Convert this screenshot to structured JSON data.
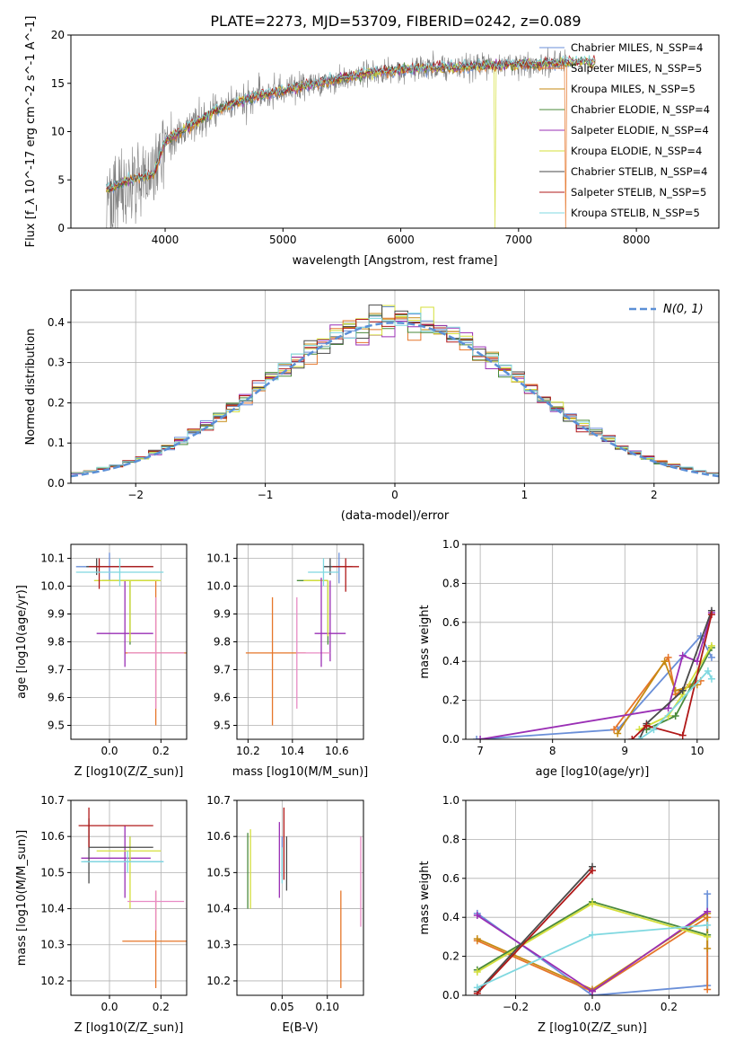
{
  "figure": {
    "title": "PLATE=2273, MJD=53709, FIBERID=0242, z=0.089"
  },
  "colors": {
    "data_spectrum": "#7f7f7f",
    "normal_curve": "#5b8fd6",
    "grid": "#b0b0b0"
  },
  "models": [
    {
      "name": "Chabrier MILES",
      "nssp": 4,
      "color": "#6a8fd8"
    },
    {
      "name": "Salpeter MILES",
      "nssp": 5,
      "color": "#e6762a"
    },
    {
      "name": "Kroupa MILES",
      "nssp": 5,
      "color": "#c68a12"
    },
    {
      "name": "Chabrier ELODIE",
      "nssp": 4,
      "color": "#4a8a3a"
    },
    {
      "name": "Salpeter ELODIE",
      "nssp": 4,
      "color": "#9a2fb5"
    },
    {
      "name": "Kroupa ELODIE",
      "nssp": 4,
      "color": "#d4df3a"
    },
    {
      "name": "Chabrier STELIB",
      "nssp": 4,
      "color": "#4a4a4a"
    },
    {
      "name": "Salpeter STELIB",
      "nssp": 5,
      "color": "#b01818"
    },
    {
      "name": "Kroupa STELIB",
      "nssp": 5,
      "color": "#7fd8e0"
    }
  ],
  "chart_data": [
    {
      "id": "spectrum",
      "type": "line",
      "title": "PLATE=2273, MJD=53709, FIBERID=0242, z=0.089",
      "xlabel": "wavelength [Angstrom, rest frame]",
      "ylabel": "Flux [f_λ 10^-17 erg cm^-2 s^-1 A^-1]",
      "xlim": [
        3200,
        8700
      ],
      "ylim": [
        0,
        20
      ],
      "xticks": [
        4000,
        5000,
        6000,
        7000,
        8000
      ],
      "yticks": [
        0,
        5,
        10,
        15,
        20
      ],
      "grid": false,
      "legend": "top-right",
      "continuum": {
        "x": [
          3500,
          3700,
          3900,
          4000,
          4200,
          4400,
          4600,
          4800,
          5000,
          5200,
          5500,
          5800,
          6000,
          6300,
          6600,
          6900,
          7200,
          7500,
          7800,
          8000,
          8400
        ],
        "y": [
          4,
          5,
          5.5,
          9,
          10.5,
          12,
          13,
          13.8,
          14.2,
          14.8,
          15.5,
          16.2,
          16.4,
          16.6,
          16.8,
          16.9,
          17,
          17.2,
          17.3,
          17.4,
          17.5
        ]
      },
      "data_range": [
        3500,
        7400
      ],
      "model_range": [
        3500,
        7650
      ],
      "dips": [
        {
          "model": "Kroupa ELODIE",
          "x": 6800
        },
        {
          "model": "Salpeter MILES",
          "x": 7400
        }
      ]
    },
    {
      "id": "residuals",
      "type": "bar",
      "style": "step-histogram",
      "xlabel": "(data-model)/error",
      "ylabel": "Normed distribution",
      "xlim": [
        -2.5,
        2.5
      ],
      "ylim": [
        0,
        0.48
      ],
      "xticks": [
        -2,
        -1,
        0,
        1,
        2
      ],
      "yticks": [
        0.0,
        0.1,
        0.2,
        0.3,
        0.4
      ],
      "grid": true,
      "legend": "top-right",
      "bin_width": 0.1,
      "normal_curve": {
        "label": "N(0, 1)",
        "mean": 0,
        "sigma": 1
      }
    },
    {
      "id": "age-vs-Z",
      "type": "scatter",
      "style": "errorbar",
      "xlabel": "Z [log10(Z/Z_sun)]",
      "ylabel": "age [log10(age/yr)]",
      "xlim": [
        -0.15,
        0.3
      ],
      "ylim": [
        9.45,
        10.15
      ],
      "xticks": [
        0.0,
        0.2
      ],
      "yticks": [
        9.5,
        9.6,
        9.7,
        9.8,
        9.9,
        10.0,
        10.1
      ],
      "grid": true,
      "points": [
        {
          "model": "Chabrier MILES",
          "x": 0.0,
          "y": 10.07,
          "xerr": [
            0.13,
            0.13
          ],
          "yerr": [
            0.05,
            0.05
          ]
        },
        {
          "model": "Salpeter MILES",
          "x": 0.18,
          "y": 9.76,
          "xerr": [
            0.12,
            0.12
          ],
          "yerr": [
            0.26,
            0.26
          ]
        },
        {
          "model": "Kroupa MILES",
          "x": 0.16,
          "y": 9.87,
          "xerr": [
            0.0,
            0.0
          ],
          "yerr": [
            0.0,
            0.0
          ]
        },
        {
          "model": "Chabrier ELODIE",
          "x": 0.08,
          "y": 10.02,
          "xerr": [
            0.11,
            0.11
          ],
          "yerr": [
            0.23,
            0.0
          ]
        },
        {
          "model": "Salpeter ELODIE",
          "x": 0.06,
          "y": 9.83,
          "xerr": [
            0.11,
            0.11
          ],
          "yerr": [
            0.12,
            0.19
          ]
        },
        {
          "model": "Kroupa ELODIE",
          "x": 0.08,
          "y": 10.02,
          "xerr": [
            0.14,
            0.12
          ],
          "yerr": [
            0.22,
            0.0
          ]
        },
        {
          "model": "Chabrier STELIB",
          "x": -0.05,
          "y": 10.07,
          "xerr": [
            0.04,
            0.22
          ],
          "yerr": [
            0.03,
            0.03
          ]
        },
        {
          "model": "Salpeter STELIB",
          "x": -0.04,
          "y": 10.07,
          "xerr": [
            0.04,
            0.21
          ],
          "yerr": [
            0.08,
            0.03
          ]
        },
        {
          "model": "Kroupa STELIB",
          "x": 0.04,
          "y": 10.05,
          "xerr": [
            0.17,
            0.17
          ],
          "yerr": [
            0.05,
            0.05
          ]
        },
        {
          "model": "Salpeter ELODIE-pink",
          "x": 0.18,
          "y": 9.76,
          "xerr": [
            0.11,
            0.11
          ],
          "yerr": [
            0.2,
            0.2
          ]
        }
      ]
    },
    {
      "id": "age-vs-mass",
      "type": "scatter",
      "style": "errorbar",
      "xlabel": "mass [log10(M/M_sun)]",
      "ylabel": "",
      "xlim": [
        10.15,
        10.72
      ],
      "ylim": [
        9.45,
        10.15
      ],
      "xticks": [
        10.2,
        10.4,
        10.6
      ],
      "yticks": [
        9.5,
        9.6,
        9.7,
        9.8,
        9.9,
        10.0,
        10.1
      ],
      "grid": true,
      "points": [
        {
          "model": "Chabrier MILES",
          "x": 10.61,
          "y": 10.07,
          "xerr": [
            0.07,
            0.0
          ],
          "yerr": [
            0.06,
            0.05
          ]
        },
        {
          "model": "Salpeter MILES",
          "x": 10.31,
          "y": 9.76,
          "xerr": [
            0.12,
            0.15
          ],
          "yerr": [
            0.26,
            0.2
          ]
        },
        {
          "model": "Chabrier ELODIE",
          "x": 10.56,
          "y": 10.02,
          "xerr": [
            0.14,
            0.0
          ],
          "yerr": [
            0.23,
            0.0
          ]
        },
        {
          "model": "Salpeter ELODIE",
          "x": 10.57,
          "y": 9.83,
          "xerr": [
            0.07,
            0.07
          ],
          "yerr": [
            0.1,
            0.19
          ]
        },
        {
          "model": "Kroupa ELODIE",
          "x": 10.56,
          "y": 10.02,
          "xerr": [
            0.11,
            0.0
          ],
          "yerr": [
            0.2,
            0.0
          ]
        },
        {
          "model": "Chabrier STELIB",
          "x": 10.57,
          "y": 10.07,
          "xerr": [
            0.03,
            0.1
          ],
          "yerr": [
            0.03,
            0.03
          ]
        },
        {
          "model": "Salpeter STELIB",
          "x": 10.64,
          "y": 10.07,
          "xerr": [
            0.06,
            0.06
          ],
          "yerr": [
            0.09,
            0.03
          ]
        },
        {
          "model": "Kroupa STELIB",
          "x": 10.54,
          "y": 10.05,
          "xerr": [
            0.07,
            0.07
          ],
          "yerr": [
            0.05,
            0.05
          ]
        },
        {
          "model": "Salpeter ELODIE-pink",
          "x": 10.42,
          "y": 9.76,
          "xerr": [
            0.0,
            0.15
          ],
          "yerr": [
            0.2,
            0.2
          ]
        },
        {
          "model": "Salpeter ELODIE-v",
          "x": 10.53,
          "y": 9.83,
          "xerr": [
            0.0,
            0.0
          ],
          "yerr": [
            0.12,
            0.2
          ]
        }
      ]
    },
    {
      "id": "mass-weight-vs-age",
      "type": "line",
      "xlabel": "age [log10(age/yr)]",
      "ylabel": "mass weight",
      "xlim": [
        6.8,
        10.3
      ],
      "ylim": [
        0.0,
        1.0
      ],
      "xticks": [
        7,
        8,
        9,
        10
      ],
      "yticks": [
        0.0,
        0.2,
        0.4,
        0.6,
        0.8,
        1.0
      ],
      "grid": true,
      "series": [
        {
          "model": "Chabrier MILES",
          "x": [
            6.95,
            8.9,
            10.05,
            10.2
          ],
          "y": [
            0.0,
            0.05,
            0.53,
            0.42
          ]
        },
        {
          "model": "Salpeter MILES",
          "x": [
            8.85,
            9.6,
            9.7,
            9.9,
            10.05
          ],
          "y": [
            0.05,
            0.42,
            0.23,
            0.28,
            0.3
          ]
        },
        {
          "model": "Kroupa MILES",
          "x": [
            8.9,
            9.55,
            9.7,
            10.0
          ],
          "y": [
            0.03,
            0.4,
            0.25,
            0.28
          ]
        },
        {
          "model": "Chabrier ELODIE",
          "x": [
            9.3,
            9.7,
            10.2
          ],
          "y": [
            0.05,
            0.12,
            0.47
          ]
        },
        {
          "model": "Salpeter ELODIE",
          "x": [
            7.0,
            9.6,
            9.8,
            10.0,
            10.2
          ],
          "y": [
            0.0,
            0.16,
            0.43,
            0.4,
            0.65
          ]
        },
        {
          "model": "Kroupa ELODIE",
          "x": [
            9.2,
            9.6,
            9.8,
            10.2
          ],
          "y": [
            0.05,
            0.12,
            0.23,
            0.48
          ]
        },
        {
          "model": "Chabrier STELIB",
          "x": [
            9.2,
            9.3,
            9.8,
            10.2
          ],
          "y": [
            0.0,
            0.08,
            0.25,
            0.66
          ]
        },
        {
          "model": "Salpeter STELIB",
          "x": [
            9.1,
            9.3,
            9.8,
            10.2
          ],
          "y": [
            0.0,
            0.07,
            0.02,
            0.64
          ]
        },
        {
          "model": "Kroupa STELIB",
          "x": [
            9.2,
            9.4,
            10.15,
            10.2
          ],
          "y": [
            0.0,
            0.05,
            0.35,
            0.31
          ]
        }
      ]
    },
    {
      "id": "mass-vs-Z",
      "type": "scatter",
      "style": "errorbar",
      "xlabel": "Z [log10(Z/Z_sun)]",
      "ylabel": "mass [log10(M/M_sun)]",
      "xlim": [
        -0.15,
        0.3
      ],
      "ylim": [
        10.16,
        10.7
      ],
      "xticks": [
        0.0,
        0.2
      ],
      "yticks": [
        10.2,
        10.3,
        10.4,
        10.5,
        10.6,
        10.7
      ],
      "grid": true,
      "points": [
        {
          "model": "Chabrier MILES",
          "x": 0.08,
          "y": 10.53,
          "xerr": [
            0.18,
            0.13
          ],
          "yerr": [
            0.0,
            0.07
          ]
        },
        {
          "model": "Salpeter MILES",
          "x": 0.18,
          "y": 10.31,
          "xerr": [
            0.13,
            0.12
          ],
          "yerr": [
            0.13,
            0.14
          ]
        },
        {
          "model": "Chabrier ELODIE",
          "x": 0.08,
          "y": 10.57,
          "xerr": [
            0.0,
            0.0
          ],
          "yerr": [
            0.0,
            0.0
          ]
        },
        {
          "model": "Salpeter ELODIE",
          "x": 0.06,
          "y": 10.54,
          "xerr": [
            0.17,
            0.1
          ],
          "yerr": [
            0.11,
            0.09
          ]
        },
        {
          "model": "Kroupa ELODIE",
          "x": 0.08,
          "y": 10.56,
          "xerr": [
            0.13,
            0.12
          ],
          "yerr": [
            0.16,
            0.04
          ]
        },
        {
          "model": "Chabrier STELIB",
          "x": -0.08,
          "y": 10.57,
          "xerr": [
            0.0,
            0.25
          ],
          "yerr": [
            0.1,
            0.08
          ]
        },
        {
          "model": "Salpeter STELIB",
          "x": -0.08,
          "y": 10.63,
          "xerr": [
            0.04,
            0.25
          ],
          "yerr": [
            0.06,
            0.05
          ]
        },
        {
          "model": "Kroupa STELIB",
          "x": 0.07,
          "y": 10.53,
          "xerr": [
            0.18,
            0.14
          ],
          "yerr": [
            0.03,
            0.03
          ]
        },
        {
          "model": "Salpeter ELODIE-pink",
          "x": 0.18,
          "y": 10.42,
          "xerr": [
            0.11,
            0.11
          ],
          "yerr": [
            0.08,
            0.03
          ]
        }
      ]
    },
    {
      "id": "mass-vs-ebv",
      "type": "scatter",
      "style": "errorbar",
      "xlabel": "E(B-V)",
      "ylabel": "",
      "xlim": [
        0.0,
        0.14
      ],
      "ylim": [
        10.16,
        10.7
      ],
      "xticks": [
        0.05,
        0.1
      ],
      "yticks": [
        10.2,
        10.3,
        10.4,
        10.5,
        10.6,
        10.7
      ],
      "grid": true,
      "points": [
        {
          "model": "Chabrier MILES",
          "x": 0.05,
          "y": 10.53,
          "yerr": [
            0.04,
            0.07
          ]
        },
        {
          "model": "Salpeter MILES",
          "x": 0.115,
          "y": 10.31,
          "yerr": [
            0.13,
            0.14
          ]
        },
        {
          "model": "Chabrier ELODIE",
          "x": 0.012,
          "y": 10.5,
          "yerr": [
            0.1,
            0.11
          ]
        },
        {
          "model": "Salpeter ELODIE",
          "x": 0.047,
          "y": 10.53,
          "yerr": [
            0.1,
            0.11
          ]
        },
        {
          "model": "Kroupa ELODIE",
          "x": 0.015,
          "y": 10.5,
          "yerr": [
            0.1,
            0.12
          ]
        },
        {
          "model": "Chabrier STELIB",
          "x": 0.055,
          "y": 10.52,
          "yerr": [
            0.07,
            0.08
          ]
        },
        {
          "model": "Salpeter STELIB",
          "x": 0.052,
          "y": 10.58,
          "yerr": [
            0.1,
            0.1
          ]
        },
        {
          "model": "Kroupa STELIB",
          "x": 0.05,
          "y": 10.52,
          "yerr": [
            0.05,
            0.05
          ]
        },
        {
          "model": "Salpeter ELODIE-pink",
          "x": 0.137,
          "y": 10.47,
          "yerr": [
            0.12,
            0.13
          ]
        }
      ]
    },
    {
      "id": "mass-weight-vs-Z",
      "type": "line",
      "xlabel": "Z [log10(Z/Z_sun)]",
      "ylabel": "mass weight",
      "xlim": [
        -0.33,
        0.33
      ],
      "ylim": [
        0.0,
        1.0
      ],
      "xticks": [
        -0.2,
        0.0,
        0.2
      ],
      "yticks": [
        0.0,
        0.2,
        0.4,
        0.6,
        0.8,
        1.0
      ],
      "grid": true,
      "series": [
        {
          "model": "Chabrier MILES",
          "x": [
            -0.3,
            0.0,
            0.3,
            0.3
          ],
          "y": [
            0.42,
            0.0,
            0.05,
            0.52
          ]
        },
        {
          "model": "Salpeter MILES",
          "x": [
            -0.3,
            0.0,
            0.3,
            0.3
          ],
          "y": [
            0.28,
            0.02,
            0.4,
            0.03
          ]
        },
        {
          "model": "Kroupa MILES",
          "x": [
            -0.3,
            0.0,
            0.3,
            0.3
          ],
          "y": [
            0.29,
            0.03,
            0.42,
            0.24
          ]
        },
        {
          "model": "Chabrier ELODIE",
          "x": [
            -0.3,
            0.0,
            0.3
          ],
          "y": [
            0.13,
            0.48,
            0.31
          ]
        },
        {
          "model": "Salpeter ELODIE",
          "x": [
            -0.3,
            0.0,
            0.3
          ],
          "y": [
            0.41,
            0.02,
            0.43
          ]
        },
        {
          "model": "Kroupa ELODIE",
          "x": [
            -0.3,
            0.0,
            0.3
          ],
          "y": [
            0.12,
            0.47,
            0.3
          ]
        },
        {
          "model": "Chabrier STELIB",
          "x": [
            -0.3,
            0.0
          ],
          "y": [
            0.02,
            0.66
          ]
        },
        {
          "model": "Salpeter STELIB",
          "x": [
            -0.3,
            0.0
          ],
          "y": [
            0.01,
            0.64
          ]
        },
        {
          "model": "Kroupa STELIB",
          "x": [
            -0.3,
            0.0,
            0.3
          ],
          "y": [
            0.04,
            0.31,
            0.36
          ]
        }
      ]
    }
  ]
}
